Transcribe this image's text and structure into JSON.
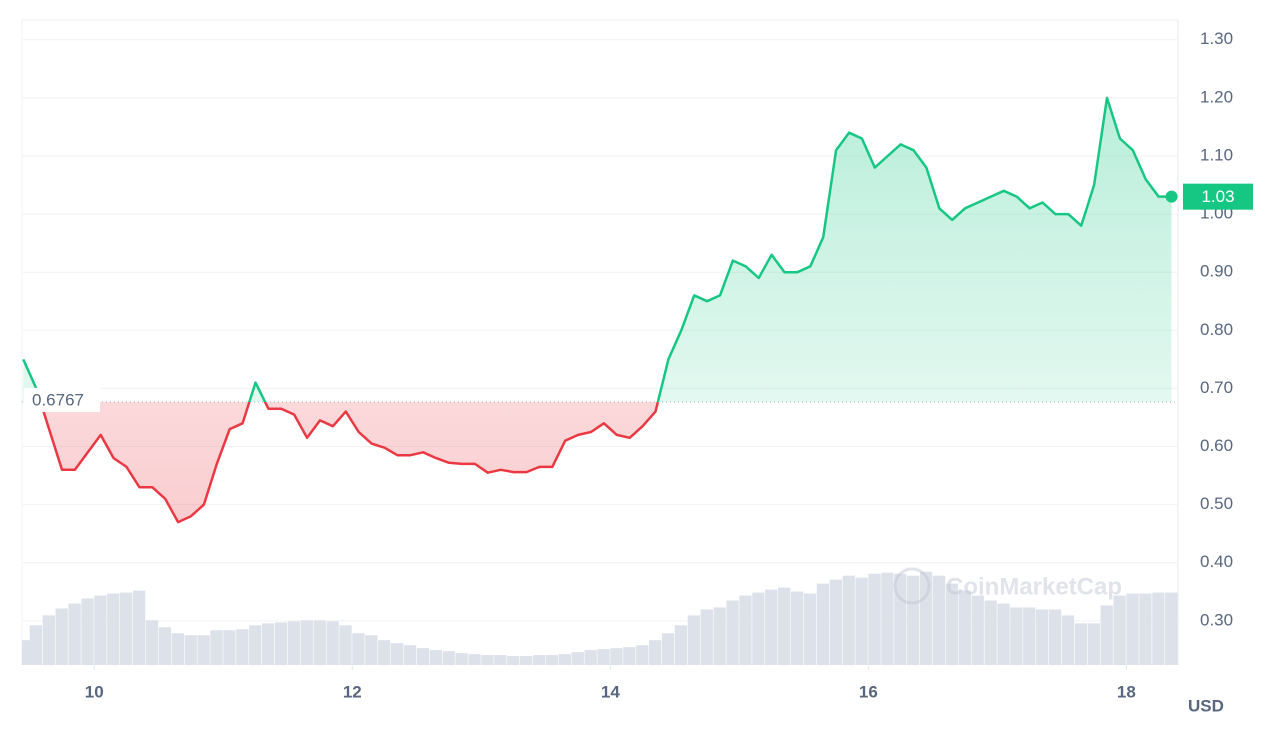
{
  "chart_data": {
    "type": "line",
    "x": [
      9.45,
      9.55,
      9.65,
      9.75,
      9.85,
      9.95,
      10.05,
      10.15,
      10.25,
      10.35,
      10.45,
      10.55,
      10.65,
      10.75,
      10.85,
      10.95,
      11.05,
      11.15,
      11.25,
      11.35,
      11.45,
      11.55,
      11.65,
      11.75,
      11.85,
      11.95,
      12.05,
      12.15,
      12.25,
      12.35,
      12.45,
      12.55,
      12.65,
      12.75,
      12.85,
      12.95,
      13.05,
      13.15,
      13.25,
      13.35,
      13.45,
      13.55,
      13.65,
      13.75,
      13.85,
      13.95,
      14.05,
      14.15,
      14.25,
      14.35,
      14.45,
      14.55,
      14.65,
      14.75,
      14.85,
      14.95,
      15.05,
      15.15,
      15.25,
      15.35,
      15.45,
      15.55,
      15.65,
      15.75,
      15.85,
      15.95,
      16.05,
      16.15,
      16.25,
      16.35,
      16.45,
      16.55,
      16.65,
      16.75,
      16.85,
      16.95,
      17.05,
      17.15,
      17.25,
      17.35,
      17.45,
      17.55,
      17.65,
      17.75,
      17.85,
      17.95,
      18.05,
      18.15,
      18.25,
      18.35
    ],
    "series": [
      {
        "name": "Price",
        "color": "#16c784",
        "below_color": "#ea3943",
        "values": [
          0.75,
          0.7,
          0.63,
          0.56,
          0.56,
          0.59,
          0.62,
          0.58,
          0.565,
          0.53,
          0.53,
          0.51,
          0.47,
          0.48,
          0.5,
          0.57,
          0.63,
          0.64,
          0.71,
          0.665,
          0.665,
          0.655,
          0.615,
          0.645,
          0.635,
          0.66,
          0.625,
          0.605,
          0.598,
          0.585,
          0.585,
          0.59,
          0.58,
          0.572,
          0.57,
          0.57,
          0.555,
          0.56,
          0.556,
          0.556,
          0.565,
          0.565,
          0.61,
          0.62,
          0.625,
          0.64,
          0.62,
          0.615,
          0.635,
          0.66,
          0.75,
          0.8,
          0.86,
          0.85,
          0.86,
          0.92,
          0.91,
          0.89,
          0.93,
          0.9,
          0.9,
          0.91,
          0.96,
          1.11,
          1.14,
          1.13,
          1.08,
          1.1,
          1.12,
          1.11,
          1.08,
          1.01,
          0.99,
          1.01,
          1.02,
          1.03,
          1.04,
          1.03,
          1.01,
          1.02,
          1.0,
          1.0,
          0.98,
          1.05,
          1.2,
          1.13,
          1.11,
          1.06,
          1.03,
          1.03
        ]
      },
      {
        "name": "Volume",
        "color": "#dde1ea",
        "axis": "y2",
        "values": [
          25,
          40,
          50,
          57,
          62,
          67,
          70,
          72,
          73,
          75,
          45,
          38,
          32,
          30,
          30,
          35,
          35,
          36,
          40,
          42,
          43,
          44,
          45,
          45,
          44,
          40,
          32,
          30,
          25,
          22,
          20,
          17,
          15,
          14,
          12,
          11,
          10,
          10,
          9,
          9,
          10,
          10,
          11,
          13,
          15,
          16,
          17,
          18,
          20,
          25,
          32,
          40,
          50,
          56,
          58,
          65,
          70,
          73,
          76,
          78,
          74,
          72,
          82,
          86,
          90,
          88,
          92,
          93,
          92,
          90,
          94,
          90,
          82,
          75,
          70,
          65,
          62,
          58,
          58,
          56,
          56,
          50,
          42,
          42,
          60,
          70,
          72,
          72,
          73,
          73
        ]
      }
    ],
    "baseline": 0.6767,
    "current_price": 1.03,
    "xlim": [
      9.44,
      18.4
    ],
    "xticks": [
      10,
      12,
      14,
      16,
      18
    ],
    "ylim": [
      0.224,
      1.334
    ],
    "yticks": [
      {
        "value": 0.3,
        "label": "0.30"
      },
      {
        "value": 0.4,
        "label": "0.40"
      },
      {
        "value": 0.5,
        "label": "0.50"
      },
      {
        "value": 0.6,
        "label": "0.60"
      },
      {
        "value": 0.7,
        "label": "0.70"
      },
      {
        "value": 0.8,
        "label": "0.80"
      },
      {
        "value": 0.9,
        "label": "0.90"
      },
      {
        "value": 1.0,
        "label": "1.00"
      },
      {
        "value": 1.1,
        "label": "1.10"
      },
      {
        "value": 1.2,
        "label": "1.20"
      },
      {
        "value": 1.3,
        "label": "1.30"
      }
    ],
    "y2lim": [
      0,
      650
    ],
    "grid": true,
    "currency_label": "USD",
    "watermark": "CoinMarketCap"
  }
}
